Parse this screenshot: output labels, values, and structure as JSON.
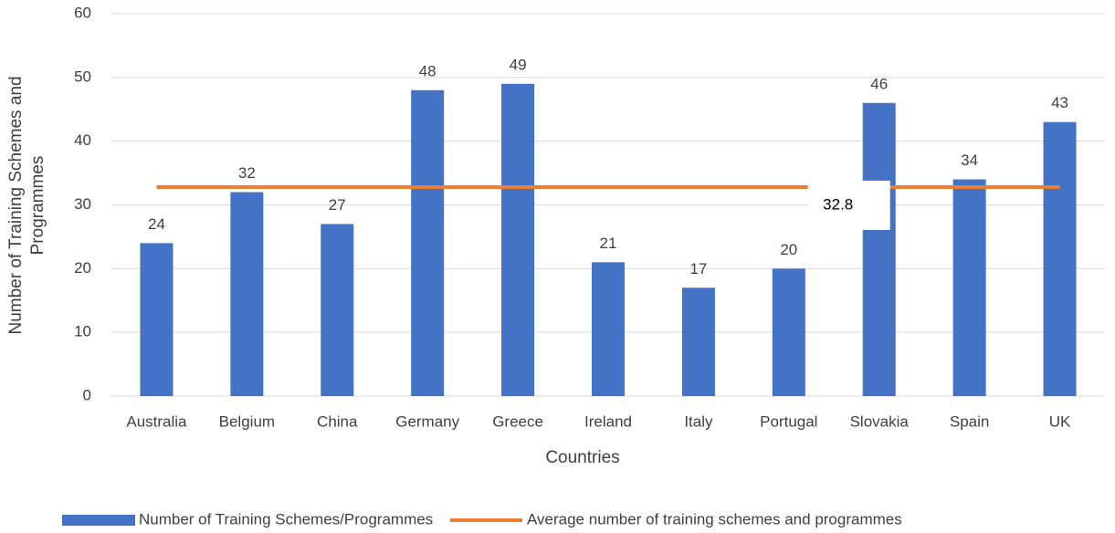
{
  "chart_data": {
    "type": "bar",
    "x_label": "Countries",
    "y_label": [
      "Number of Training Schemes and",
      "Programmes"
    ],
    "categories": [
      "Australia",
      "Belgium",
      "China",
      "Germany",
      "Greece",
      "Ireland",
      "Italy",
      "Portugal",
      "Slovakia",
      "Spain",
      "UK"
    ],
    "series": [
      {
        "name": "Number of Training Schemes/Programmes",
        "type": "bar",
        "color": "#4472c4",
        "values": [
          24,
          32,
          27,
          48,
          49,
          21,
          17,
          20,
          46,
          34,
          43
        ]
      },
      {
        "name": "Average number of training schemes and programmes",
        "type": "line",
        "color": "#ed7d31",
        "values": [
          32.8,
          32.8,
          32.8,
          32.8,
          32.8,
          32.8,
          32.8,
          32.8,
          32.8,
          32.8,
          32.8
        ]
      }
    ],
    "ylim": [
      0,
      60
    ],
    "yticks": [
      0,
      10,
      20,
      30,
      40,
      50,
      60
    ],
    "grid": true,
    "legend": "bottom"
  }
}
